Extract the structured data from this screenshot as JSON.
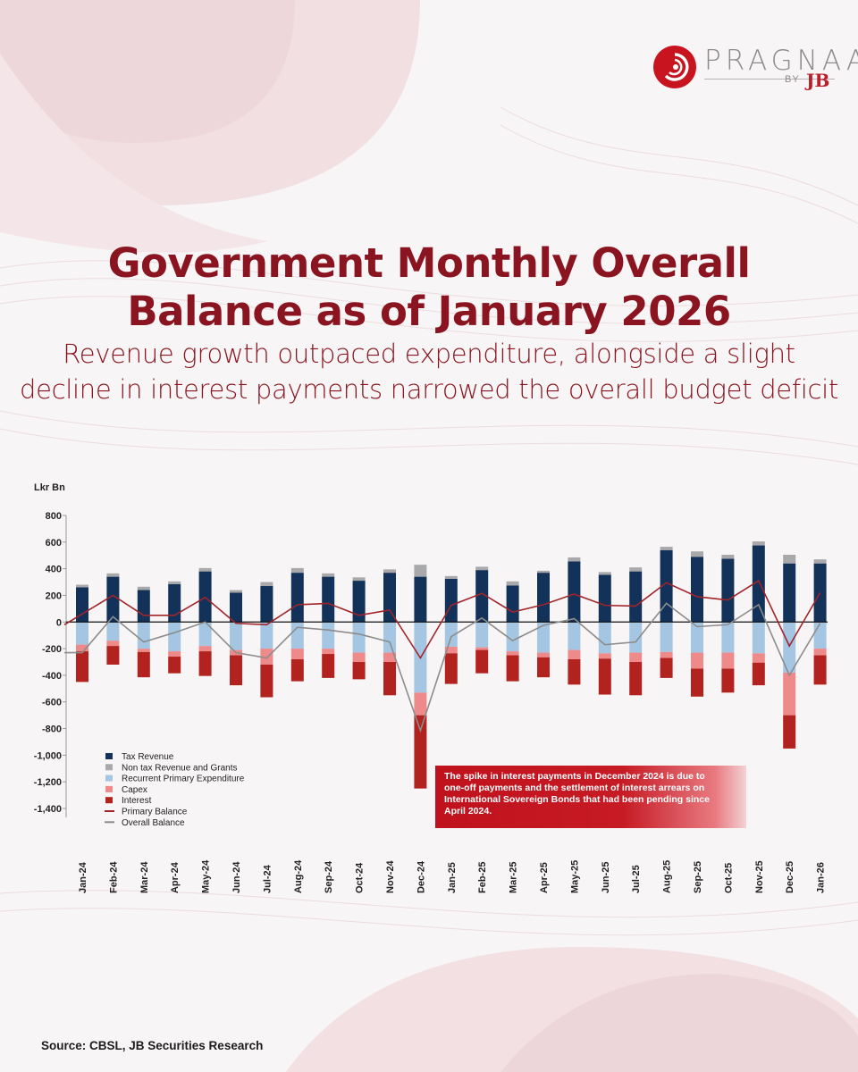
{
  "brand": {
    "name": "PRAGNAA",
    "by": "BY",
    "jb": "JB"
  },
  "title_line1": "Government Monthly Overall",
  "title_line2": "Balance as of January 2026",
  "subtitle_line1": "Revenue growth outpaced expenditure, alongside a slight",
  "subtitle_line2": "decline in interest payments narrowed the overall budget deficit",
  "callout": "The spike in interest payments in December 2024 is due to one-off payments and the settlement of interest arrears on International Sovereign Bonds that had been pending since April 2024.",
  "source": "Source: CBSL, JB Securities Research",
  "colors": {
    "title": "#8a1520",
    "tax_revenue": "#13325a",
    "non_tax_revenue": "#a9a9ab",
    "recurrent": "#a5c6e3",
    "capex": "#ee8a8a",
    "interest": "#b2221e",
    "primary_balance": "#a0242a",
    "overall_balance": "#8c8c8c",
    "callout_bg": "#c0121c"
  },
  "chart_data": {
    "type": "bar",
    "stacked": true,
    "ylabel": "Lkr Bn",
    "ylim": [
      -1400,
      800
    ],
    "yticks": [
      800,
      600,
      400,
      200,
      0,
      -200,
      -400,
      -600,
      -800,
      -1000,
      -1200,
      -1400
    ],
    "grid": false,
    "legend_position": "bottom-left",
    "categories": [
      "Jan-24",
      "Feb-24",
      "Mar-24",
      "Apr-24",
      "May-24",
      "Jun-24",
      "Jul-24",
      "Aug-24",
      "Sep-24",
      "Oct-24",
      "Nov-24",
      "Dec-24",
      "Jan-25",
      "Feb-25",
      "Mar-25",
      "Apr-25",
      "May-25",
      "Jun-25",
      "Jul-25",
      "Aug-25",
      "Sep-25",
      "Oct-25",
      "Nov-25",
      "Dec-25",
      "Jan-26"
    ],
    "series": [
      {
        "name": "Tax Revenue",
        "kind": "bar",
        "values": [
          260,
          340,
          240,
          285,
          380,
          220,
          270,
          370,
          340,
          310,
          370,
          340,
          325,
          390,
          275,
          370,
          455,
          355,
          380,
          540,
          490,
          475,
          575,
          440,
          440
        ]
      },
      {
        "name": "Non tax Revenue and Grants",
        "kind": "bar",
        "values": [
          20,
          25,
          25,
          20,
          25,
          20,
          30,
          35,
          25,
          25,
          25,
          90,
          20,
          25,
          30,
          15,
          30,
          20,
          30,
          25,
          40,
          30,
          30,
          65,
          30
        ]
      },
      {
        "name": "Recurrent Primary Expenditure",
        "kind": "bar",
        "values": [
          -170,
          -140,
          -200,
          -220,
          -180,
          -210,
          -200,
          -200,
          -200,
          -230,
          -230,
          -530,
          -185,
          -190,
          -220,
          -230,
          -210,
          -235,
          -230,
          -225,
          -230,
          -230,
          -235,
          -380,
          -200
        ]
      },
      {
        "name": "Capex",
        "kind": "bar",
        "values": [
          -50,
          -40,
          -25,
          -40,
          -40,
          -40,
          -120,
          -80,
          -40,
          -70,
          -70,
          -170,
          -50,
          -20,
          -30,
          -35,
          -70,
          -40,
          -70,
          -45,
          -120,
          -120,
          -70,
          -320,
          -50
        ]
      },
      {
        "name": "Interest",
        "kind": "bar",
        "values": [
          -230,
          -140,
          -190,
          -125,
          -185,
          -225,
          -245,
          -165,
          -180,
          -130,
          -250,
          -550,
          -230,
          -175,
          -195,
          -150,
          -190,
          -270,
          -250,
          -150,
          -210,
          -180,
          -170,
          -250,
          -220
        ]
      },
      {
        "name": "Primary Balance",
        "kind": "line",
        "values": [
          60,
          200,
          50,
          50,
          185,
          -10,
          -20,
          130,
          140,
          50,
          90,
          -270,
          125,
          215,
          75,
          130,
          210,
          125,
          120,
          295,
          190,
          165,
          310,
          -180,
          220
        ]
      },
      {
        "name": "Overall Balance",
        "kind": "line",
        "values": [
          -230,
          40,
          -150,
          -80,
          0,
          -230,
          -270,
          -40,
          -60,
          -90,
          -150,
          -815,
          -110,
          30,
          -140,
          -25,
          25,
          -170,
          -150,
          140,
          -35,
          -20,
          130,
          -400,
          -10
        ]
      }
    ]
  }
}
